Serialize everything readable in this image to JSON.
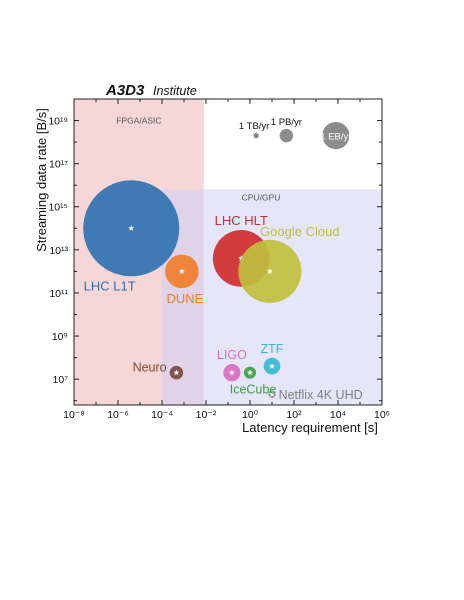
{
  "header": {
    "brand": "A3D3",
    "brand_suffix": "Institute"
  },
  "chart_data": {
    "type": "scatter",
    "xlabel": "Latency requirement [s]",
    "ylabel": "Streaming data rate [B/s]",
    "xscale": "log",
    "yscale": "log",
    "xlim": [
      -8,
      6
    ],
    "ylim": [
      5.8,
      20
    ],
    "x_ticks": [
      {
        "exp": -8,
        "label": "10⁻⁸"
      },
      {
        "exp": -6,
        "label": "10⁻⁶"
      },
      {
        "exp": -4,
        "label": "10⁻⁴"
      },
      {
        "exp": -2,
        "label": "10⁻²"
      },
      {
        "exp": 0,
        "label": "10⁰"
      },
      {
        "exp": 2,
        "label": "10²"
      },
      {
        "exp": 4,
        "label": "10⁴"
      },
      {
        "exp": 6,
        "label": "10⁶"
      }
    ],
    "y_ticks": [
      {
        "exp": 7,
        "label": "10⁷"
      },
      {
        "exp": 9,
        "label": "10⁹"
      },
      {
        "exp": 11,
        "label": "10¹¹"
      },
      {
        "exp": 13,
        "label": "10¹³"
      },
      {
        "exp": 15,
        "label": "10¹⁵"
      },
      {
        "exp": 17,
        "label": "10¹⁷"
      },
      {
        "exp": 19,
        "label": "10¹⁹"
      }
    ],
    "regions": [
      {
        "label": "FPGA/ASIC",
        "x_range": [
          -8,
          -2.1
        ],
        "y_range": [
          5.8,
          20
        ],
        "color": "#f3c8c8"
      },
      {
        "label": "CPU/GPU",
        "x_range": [
          -4,
          6
        ],
        "y_range": [
          5.8,
          15.8
        ],
        "color": "#cfd2f6"
      }
    ],
    "series": [
      {
        "name": "LHC L1T",
        "x": 4e-06,
        "y": 100000000000000.0,
        "size_log": 17.2,
        "color": "#2f72b2",
        "label_color": "#2f72b2",
        "label_pos": "below-left"
      },
      {
        "name": "DUNE",
        "x": 0.0008,
        "y": 1000000000000.0,
        "size_log": 14.2,
        "color": "#ef7d2a",
        "label_color": "#ef7d2a",
        "label_pos": "below"
      },
      {
        "name": "LHC HLT",
        "x": 0.4,
        "y": 4000000000000.0,
        "size_log": 15.7,
        "color": "#d12e2e",
        "label_color": "#d12e2e",
        "label_pos": "above"
      },
      {
        "name": "Google Cloud",
        "x": 8,
        "y": 1000000000000.0,
        "size_log": 16.0,
        "color": "#bfbf3d",
        "label_color": "#bfbf3d",
        "label_pos": "above-right"
      },
      {
        "name": "LIGO",
        "x": 0.15,
        "y": 20000000.0,
        "size_log": 12.3,
        "color": "#d86ec0",
        "label_color": "#d86ec0",
        "label_pos": "above"
      },
      {
        "name": "ZTF",
        "x": 10,
        "y": 40000000.0,
        "size_log": 12.2,
        "color": "#36b9cf",
        "label_color": "#36b9cf",
        "label_pos": "above"
      },
      {
        "name": "Neuro",
        "x": 0.00045,
        "y": 20000000.0,
        "size_log": 11.6,
        "color": "#7a4a3f",
        "label_color": "#7a4a3f",
        "label_pos": "left"
      },
      {
        "name": "IceCube",
        "x": 1,
        "y": 20000000.0,
        "size_log": 11.3,
        "color": "#3fa043",
        "label_color": "#3fa043",
        "label_pos": "below"
      },
      {
        "name": "Netflix 4K UHD",
        "x": 10,
        "y": 2000000.0,
        "size_log": 9.8,
        "color": "#7f7f7f",
        "label_color": "#7f7f7f",
        "label_pos": "right"
      }
    ],
    "size_legend": [
      {
        "label": "1 TB/yr",
        "x": 1.9,
        "y": 2e+18,
        "size_log": 9.0,
        "color": "#8c8c8c"
      },
      {
        "label": "1 PB/yr",
        "x": 45,
        "y": 2e+18,
        "size_log": 11.6,
        "color": "#8c8c8c"
      },
      {
        "label": "1 EB/yr",
        "x": 8000,
        "y": 2e+18,
        "size_log": 13.6,
        "color": "#8c8c8c"
      }
    ]
  }
}
